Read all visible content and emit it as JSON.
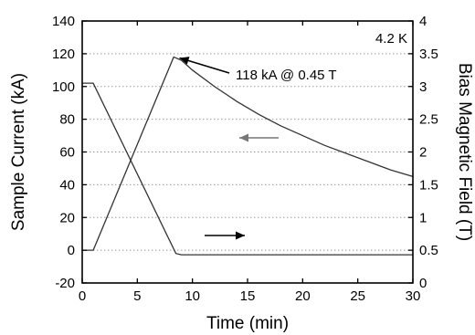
{
  "chart_data": {
    "type": "line",
    "xlabel": "Time (min)",
    "ylabel_left": "Sample Current (kA)",
    "ylabel_right": "Bias Magnetic Field (T)",
    "xlim": [
      0,
      30
    ],
    "ylim_left": [
      -20,
      140
    ],
    "ylim_right": [
      0,
      4
    ],
    "x_ticks": [
      0,
      5,
      10,
      15,
      20,
      25,
      30
    ],
    "y_left_ticks": [
      -20,
      0,
      20,
      40,
      60,
      80,
      100,
      120,
      140
    ],
    "y_right_ticks": [
      0,
      0.5,
      1,
      1.5,
      2,
      2.5,
      3,
      3.5,
      4
    ],
    "y_right_tick_labels": [
      "0",
      "0.5",
      "1",
      "1.5",
      "2",
      "2.5",
      "3",
      "3.5",
      "4"
    ],
    "grid": "horizontal dotted",
    "series": [
      {
        "axis": "left",
        "color": "#333333",
        "points": [
          [
            0.0,
            0
          ],
          [
            1.0,
            0
          ],
          [
            8.3,
            118
          ],
          [
            9.0,
            116
          ],
          [
            10.0,
            110
          ],
          [
            12.0,
            100
          ],
          [
            14.0,
            91
          ],
          [
            16.0,
            83
          ],
          [
            18.0,
            76
          ],
          [
            20.0,
            70
          ],
          [
            22.0,
            64
          ],
          [
            24.0,
            59
          ],
          [
            26.0,
            54
          ],
          [
            28.0,
            49
          ],
          [
            30.0,
            45
          ]
        ]
      },
      {
        "axis": "right",
        "color": "#333333",
        "points": [
          [
            0.0,
            3.05
          ],
          [
            1.0,
            3.05
          ],
          [
            8.5,
            0.45
          ],
          [
            9.0,
            0.43
          ],
          [
            30.0,
            0.43
          ]
        ]
      }
    ],
    "annotations": {
      "temperature": "4.2 K",
      "peak_label": "118 kA @ 0.45 T"
    }
  }
}
